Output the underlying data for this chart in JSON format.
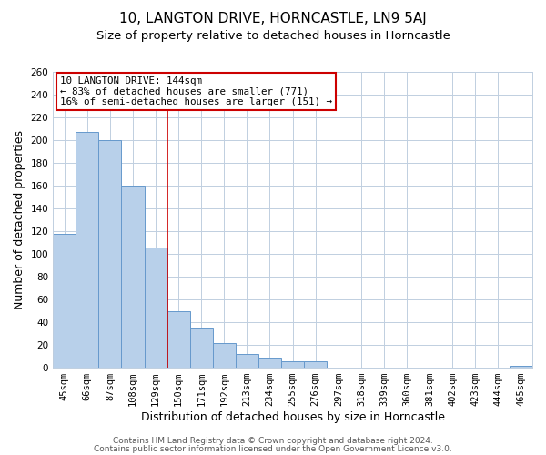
{
  "title": "10, LANGTON DRIVE, HORNCASTLE, LN9 5AJ",
  "subtitle": "Size of property relative to detached houses in Horncastle",
  "xlabel": "Distribution of detached houses by size in Horncastle",
  "ylabel": "Number of detached properties",
  "bar_labels": [
    "45sqm",
    "66sqm",
    "87sqm",
    "108sqm",
    "129sqm",
    "150sqm",
    "171sqm",
    "192sqm",
    "213sqm",
    "234sqm",
    "255sqm",
    "276sqm",
    "297sqm",
    "318sqm",
    "339sqm",
    "360sqm",
    "381sqm",
    "402sqm",
    "423sqm",
    "444sqm",
    "465sqm"
  ],
  "bar_heights": [
    118,
    207,
    200,
    160,
    106,
    50,
    35,
    22,
    12,
    9,
    6,
    6,
    0,
    0,
    0,
    0,
    0,
    0,
    0,
    0,
    2
  ],
  "bar_color": "#b8d0ea",
  "bar_edge_color": "#6699cc",
  "ylim": [
    0,
    260
  ],
  "yticks": [
    0,
    20,
    40,
    60,
    80,
    100,
    120,
    140,
    160,
    180,
    200,
    220,
    240,
    260
  ],
  "vline_x_index": 5,
  "vline_color": "#cc0000",
  "annotation_title": "10 LANGTON DRIVE: 144sqm",
  "annotation_line1": "← 83% of detached houses are smaller (771)",
  "annotation_line2": "16% of semi-detached houses are larger (151) →",
  "annotation_box_color": "#cc0000",
  "footer_line1": "Contains HM Land Registry data © Crown copyright and database right 2024.",
  "footer_line2": "Contains public sector information licensed under the Open Government Licence v3.0.",
  "bg_color": "#ffffff",
  "grid_color": "#c0cfe0",
  "title_fontsize": 11,
  "subtitle_fontsize": 9.5,
  "axis_label_fontsize": 9,
  "tick_fontsize": 7.5,
  "annotation_fontsize": 7.8,
  "footer_fontsize": 6.5
}
